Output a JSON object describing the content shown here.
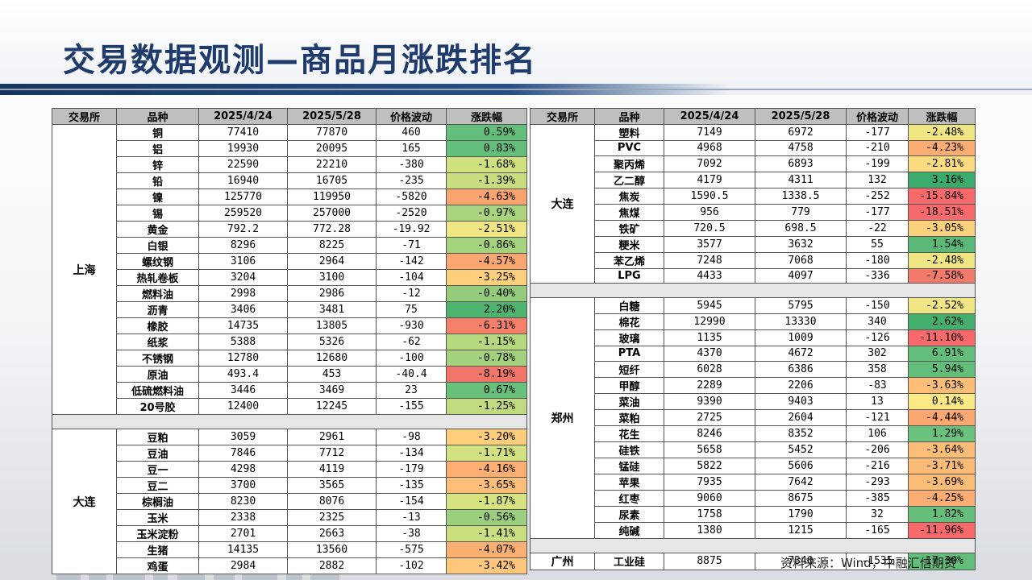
{
  "title": "交易数据观测—商品月涨跌排名",
  "source": "资料来源：Wind，中融汇信期货",
  "headers": [
    "交易所",
    "品种",
    "2025/4/24",
    "2025/5/28",
    "价格波动",
    "涨跌幅"
  ],
  "left_groups": [
    {
      "exchange": "上海",
      "rows": [
        {
          "name": "铜",
          "d1": "77410",
          "d2": "77870",
          "chg": "460",
          "pct": "0.59%",
          "color": "#63be7b"
        },
        {
          "name": "铝",
          "d1": "19930",
          "d2": "20095",
          "chg": "165",
          "pct": "0.83%",
          "color": "#63be7b"
        },
        {
          "name": "锌",
          "d1": "22590",
          "d2": "22210",
          "chg": "-380",
          "pct": "-1.68%",
          "color": "#cfe07f"
        },
        {
          "name": "铅",
          "d1": "16940",
          "d2": "16705",
          "chg": "-235",
          "pct": "-1.39%",
          "color": "#c7dd7f"
        },
        {
          "name": "镍",
          "d1": "125770",
          "d2": "119950",
          "chg": "-5820",
          "pct": "-4.63%",
          "color": "#f8a46f"
        },
        {
          "name": "锡",
          "d1": "259520",
          "d2": "257000",
          "chg": "-2520",
          "pct": "-0.97%",
          "color": "#a9d37d"
        },
        {
          "name": "黄金",
          "d1": "792.2",
          "d2": "772.28",
          "chg": "-19.92",
          "pct": "-2.51%",
          "color": "#f0e683"
        },
        {
          "name": "白银",
          "d1": "8296",
          "d2": "8225",
          "chg": "-71",
          "pct": "-0.86%",
          "color": "#a4d27d"
        },
        {
          "name": "螺纹钢",
          "d1": "3106",
          "d2": "2964",
          "chg": "-142",
          "pct": "-4.57%",
          "color": "#f9a770"
        },
        {
          "name": "热轧卷板",
          "d1": "3204",
          "d2": "3100",
          "chg": "-104",
          "pct": "-3.25%",
          "color": "#fdcf7d"
        },
        {
          "name": "燃料油",
          "d1": "2998",
          "d2": "2986",
          "chg": "-12",
          "pct": "-0.40%",
          "color": "#94cc7c"
        },
        {
          "name": "沥青",
          "d1": "3406",
          "d2": "3481",
          "chg": "75",
          "pct": "2.20%",
          "color": "#4db36f"
        },
        {
          "name": "橡胶",
          "d1": "14735",
          "d2": "13805",
          "chg": "-930",
          "pct": "-6.31%",
          "color": "#f4806a"
        },
        {
          "name": "纸浆",
          "d1": "5388",
          "d2": "5326",
          "chg": "-62",
          "pct": "-1.15%",
          "color": "#b5d77e"
        },
        {
          "name": "不锈钢",
          "d1": "12780",
          "d2": "12680",
          "chg": "-100",
          "pct": "-0.78%",
          "color": "#a3d17d"
        },
        {
          "name": "原油",
          "d1": "493.4",
          "d2": "453",
          "chg": "-40.4",
          "pct": "-8.19%",
          "color": "#f2756a"
        },
        {
          "name": "低硫燃料油",
          "d1": "3446",
          "d2": "3469",
          "chg": "23",
          "pct": "0.67%",
          "color": "#68c07b"
        },
        {
          "name": "20号胶",
          "d1": "12400",
          "d2": "12245",
          "chg": "-155",
          "pct": "-1.25%",
          "color": "#c0db7f"
        }
      ]
    },
    {
      "exchange": "大连",
      "rows": [
        {
          "name": "豆粕",
          "d1": "3059",
          "d2": "2961",
          "chg": "-98",
          "pct": "-3.20%",
          "color": "#fece7d"
        },
        {
          "name": "豆油",
          "d1": "7846",
          "d2": "7712",
          "chg": "-134",
          "pct": "-1.71%",
          "color": "#d1e17f"
        },
        {
          "name": "豆一",
          "d1": "4298",
          "d2": "4119",
          "chg": "-179",
          "pct": "-4.16%",
          "color": "#faae72"
        },
        {
          "name": "豆二",
          "d1": "3700",
          "d2": "3565",
          "chg": "-135",
          "pct": "-3.65%",
          "color": "#fbbd77"
        },
        {
          "name": "棕榈油",
          "d1": "8230",
          "d2": "8076",
          "chg": "-154",
          "pct": "-1.87%",
          "color": "#d7e381"
        },
        {
          "name": "玉米",
          "d1": "2338",
          "d2": "2325",
          "chg": "-13",
          "pct": "-0.56%",
          "color": "#9bcf7d"
        },
        {
          "name": "玉米淀粉",
          "d1": "2701",
          "d2": "2663",
          "chg": "-38",
          "pct": "-1.41%",
          "color": "#c9de7f"
        },
        {
          "name": "生猪",
          "d1": "14135",
          "d2": "13560",
          "chg": "-575",
          "pct": "-4.07%",
          "color": "#fab073"
        },
        {
          "name": "鸡蛋",
          "d1": "2984",
          "d2": "2882",
          "chg": "-102",
          "pct": "-3.42%",
          "color": "#fec77b"
        }
      ]
    }
  ],
  "right_groups": [
    {
      "exchange": "大连",
      "rows": [
        {
          "name": "塑料",
          "d1": "7149",
          "d2": "6972",
          "chg": "-177",
          "pct": "-2.48%",
          "color": "#efe683"
        },
        {
          "name": "PVC",
          "d1": "4968",
          "d2": "4758",
          "chg": "-210",
          "pct": "-4.23%",
          "color": "#fbac72"
        },
        {
          "name": "聚丙烯",
          "d1": "7092",
          "d2": "6893",
          "chg": "-199",
          "pct": "-2.81%",
          "color": "#fbdb80"
        },
        {
          "name": "乙二醇",
          "d1": "4179",
          "d2": "4311",
          "chg": "132",
          "pct": "3.16%",
          "color": "#3aab6b"
        },
        {
          "name": "焦炭",
          "d1": "1590.5",
          "d2": "1338.5",
          "chg": "-252",
          "pct": "-15.84%",
          "color": "#f8696b"
        },
        {
          "name": "焦煤",
          "d1": "956",
          "d2": "779",
          "chg": "-177",
          "pct": "-18.51%",
          "color": "#f8696b"
        },
        {
          "name": "铁矿",
          "d1": "720.5",
          "d2": "698.5",
          "chg": "-22",
          "pct": "-3.05%",
          "color": "#fcd17d"
        },
        {
          "name": "粳米",
          "d1": "3577",
          "d2": "3632",
          "chg": "55",
          "pct": "1.54%",
          "color": "#5ab976"
        },
        {
          "name": "苯乙烯",
          "d1": "7248",
          "d2": "7068",
          "chg": "-180",
          "pct": "-2.48%",
          "color": "#efe683"
        },
        {
          "name": "LPG",
          "d1": "4433",
          "d2": "4097",
          "chg": "-336",
          "pct": "-7.58%",
          "color": "#f37a6a"
        }
      ]
    },
    {
      "exchange": "郑州",
      "rows": [
        {
          "name": "白糖",
          "d1": "5945",
          "d2": "5795",
          "chg": "-150",
          "pct": "-2.52%",
          "color": "#f0e683"
        },
        {
          "name": "棉花",
          "d1": "12990",
          "d2": "13330",
          "chg": "340",
          "pct": "2.62%",
          "color": "#44ae6d"
        },
        {
          "name": "玻璃",
          "d1": "1135",
          "d2": "1009",
          "chg": "-126",
          "pct": "-11.10%",
          "color": "#f8696b"
        },
        {
          "name": "PTA",
          "d1": "4370",
          "d2": "4672",
          "chg": "302",
          "pct": "6.91%",
          "color": "#63be7b"
        },
        {
          "name": "短纤",
          "d1": "6028",
          "d2": "6386",
          "chg": "358",
          "pct": "5.94%",
          "color": "#63be7b"
        },
        {
          "name": "甲醇",
          "d1": "2289",
          "d2": "2206",
          "chg": "-83",
          "pct": "-3.63%",
          "color": "#fbbd77"
        },
        {
          "name": "菜油",
          "d1": "9390",
          "d2": "9403",
          "chg": "13",
          "pct": "0.14%",
          "color": "#fbe985"
        },
        {
          "name": "菜粕",
          "d1": "2725",
          "d2": "2604",
          "chg": "-121",
          "pct": "-4.44%",
          "color": "#fba772"
        },
        {
          "name": "花生",
          "d1": "8246",
          "d2": "8352",
          "chg": "106",
          "pct": "1.29%",
          "color": "#6ac17b"
        },
        {
          "name": "硅铁",
          "d1": "5658",
          "d2": "5452",
          "chg": "-206",
          "pct": "-3.64%",
          "color": "#fbbd77"
        },
        {
          "name": "锰硅",
          "d1": "5822",
          "d2": "5606",
          "chg": "-216",
          "pct": "-3.71%",
          "color": "#fbbb77"
        },
        {
          "name": "苹果",
          "d1": "7935",
          "d2": "7642",
          "chg": "-293",
          "pct": "-3.69%",
          "color": "#fbbc77"
        },
        {
          "name": "红枣",
          "d1": "9060",
          "d2": "8675",
          "chg": "-385",
          "pct": "-4.25%",
          "color": "#fbac72"
        },
        {
          "name": "尿素",
          "d1": "1758",
          "d2": "1790",
          "chg": "32",
          "pct": "1.82%",
          "color": "#65bf7b"
        },
        {
          "name": "纯碱",
          "d1": "1380",
          "d2": "1215",
          "chg": "-165",
          "pct": "-11.96%",
          "color": "#f8696b"
        }
      ]
    },
    {
      "exchange": "广州",
      "rows": [
        {
          "name": "工业硅",
          "d1": "8875",
          "d2": "7340",
          "chg": "-1535",
          "pct": "-17.30%",
          "color": "#63be7b"
        }
      ]
    }
  ]
}
